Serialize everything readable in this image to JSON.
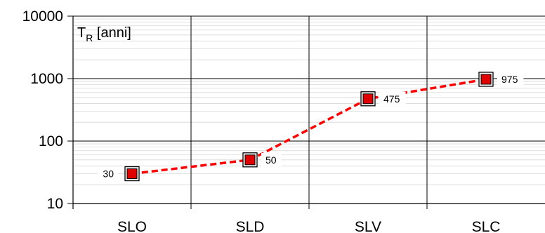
{
  "chart_data": {
    "type": "line",
    "categories": [
      "SLO",
      "SLD",
      "SLV",
      "SLC"
    ],
    "values": [
      30,
      50,
      475,
      975
    ],
    "data_labels": [
      "30",
      "50",
      "475",
      "975"
    ],
    "ylabel_main": "T",
    "ylabel_sub": "R",
    "ylabel_unit": " [anni]",
    "yscale": "log",
    "ylim": [
      10,
      10000
    ],
    "yticks": [
      10,
      100,
      1000,
      10000
    ],
    "ytick_labels": [
      "10",
      "100",
      "1000",
      "10000"
    ],
    "grid": true,
    "line_style": "dashed",
    "colors": {
      "line": "#ff0000",
      "marker_fill": "#e00000",
      "marker_border": "#000000",
      "grid_major": "#000000",
      "grid_minor": "#d8d8d8"
    }
  }
}
